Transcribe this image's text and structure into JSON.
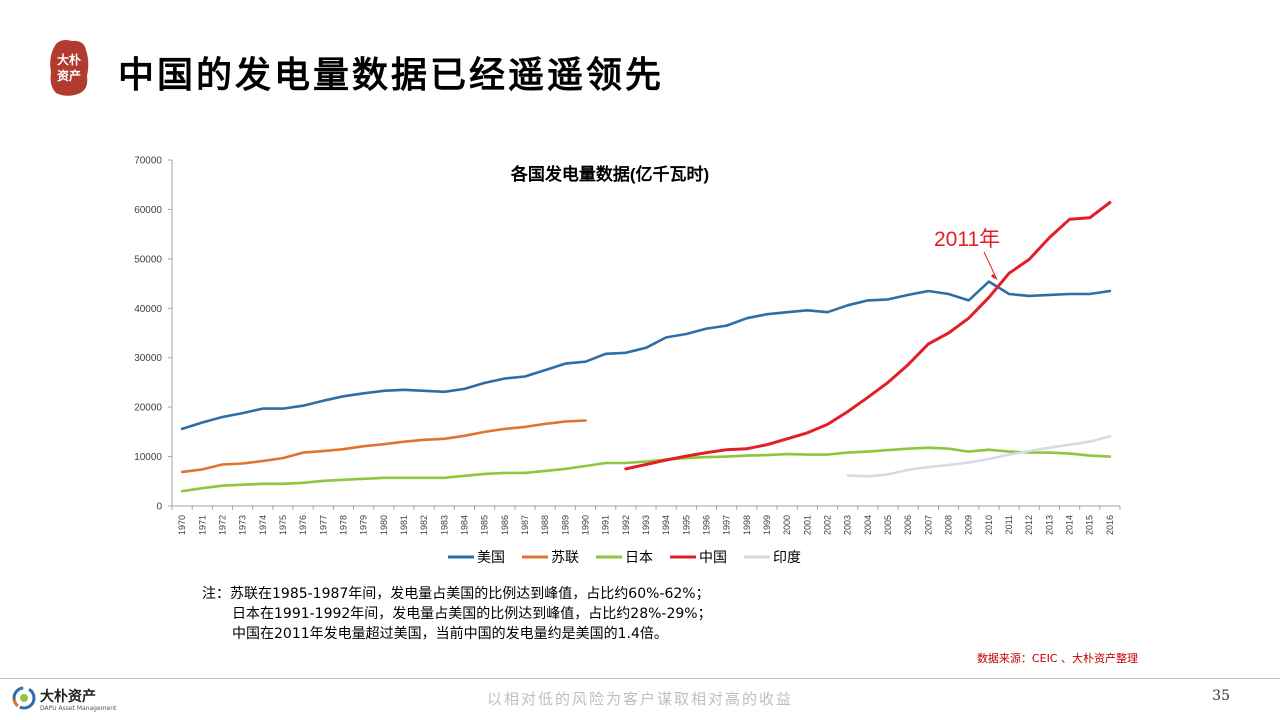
{
  "header": {
    "title": "中国的发电量数据已经遥遥领先",
    "seal_text": "大朴资产"
  },
  "chart_data": {
    "type": "line",
    "title": "各国发电量数据(亿千瓦时)",
    "x": [
      1970,
      1971,
      1972,
      1973,
      1974,
      1975,
      1976,
      1977,
      1978,
      1979,
      1980,
      1981,
      1982,
      1983,
      1984,
      1985,
      1986,
      1987,
      1988,
      1989,
      1990,
      1991,
      1992,
      1993,
      1994,
      1995,
      1996,
      1997,
      1998,
      1999,
      2000,
      2001,
      2002,
      2003,
      2004,
      2005,
      2006,
      2007,
      2008,
      2009,
      2010,
      2011,
      2012,
      2013,
      2014,
      2015,
      2016
    ],
    "ylim": [
      0,
      70000
    ],
    "yticks": [
      0,
      10000,
      20000,
      30000,
      40000,
      50000,
      60000,
      70000
    ],
    "legend_position": "bottom",
    "grid": false,
    "series": [
      {
        "name": "美国",
        "color": "#2e6ea7",
        "values": [
          15600,
          16900,
          18000,
          18800,
          19700,
          19700,
          20300,
          21300,
          22200,
          22800,
          23300,
          23500,
          23300,
          23100,
          23700,
          24900,
          25800,
          26200,
          27500,
          28800,
          29200,
          30800,
          31000,
          32000,
          34100,
          34800,
          35900,
          36500,
          38000,
          38800,
          39200,
          39600,
          39200,
          40600,
          41600,
          41800,
          42700,
          43500,
          42900,
          41600,
          45400,
          42900,
          42500,
          42700,
          42900,
          42900,
          43500
        ]
      },
      {
        "name": "苏联",
        "color": "#e0742c",
        "values": [
          6900,
          7400,
          8400,
          8600,
          9100,
          9700,
          10800,
          11100,
          11500,
          12100,
          12500,
          13000,
          13400,
          13600,
          14200,
          15000,
          15600,
          16000,
          16600,
          17100,
          17300,
          null,
          null,
          null,
          null,
          null,
          null,
          null,
          null,
          null,
          null,
          null,
          null,
          null,
          null,
          null,
          null,
          null,
          null,
          null,
          null,
          null,
          null,
          null,
          null,
          null,
          null
        ]
      },
      {
        "name": "日本",
        "color": "#8dc63f",
        "values": [
          3000,
          3600,
          4100,
          4300,
          4500,
          4500,
          4700,
          5100,
          5300,
          5500,
          5700,
          5700,
          5700,
          5700,
          6100,
          6500,
          6700,
          6700,
          7100,
          7500,
          8100,
          8700,
          8700,
          9000,
          9400,
          9700,
          9900,
          10000,
          10200,
          10300,
          10500,
          10400,
          10400,
          10800,
          11000,
          11300,
          11600,
          11800,
          11600,
          11000,
          11400,
          11000,
          10800,
          10800,
          10600,
          10200,
          10000
        ]
      },
      {
        "name": "中国",
        "color": "#e31e24",
        "values": [
          null,
          null,
          null,
          null,
          null,
          null,
          null,
          null,
          null,
          null,
          null,
          null,
          null,
          null,
          null,
          null,
          null,
          null,
          null,
          null,
          null,
          null,
          7500,
          8400,
          9300,
          10100,
          10800,
          11400,
          11600,
          12400,
          13600,
          14800,
          16500,
          19100,
          22000,
          25000,
          28600,
          32800,
          35000,
          38000,
          42200,
          47100,
          49900,
          54300,
          58000,
          58300,
          61400
        ]
      },
      {
        "name": "印度",
        "color": "#d9d9e6",
        "values": [
          null,
          null,
          null,
          null,
          null,
          null,
          null,
          null,
          null,
          null,
          null,
          null,
          null,
          null,
          null,
          null,
          null,
          null,
          null,
          null,
          null,
          null,
          null,
          null,
          null,
          null,
          null,
          null,
          null,
          null,
          null,
          null,
          null,
          6200,
          6000,
          6400,
          7300,
          7900,
          8300,
          8800,
          9500,
          10400,
          11100,
          11800,
          12400,
          13000,
          14100
        ]
      }
    ],
    "annotation": {
      "text": "2011年",
      "x": 2011,
      "y": 45400
    }
  },
  "footnote": {
    "lines": [
      "注：苏联在1985-1987年间，发电量占美国的比例达到峰值，占比约60%-62%；",
      "日本在1991-1992年间，发电量占美国的比例达到峰值，占比约28%-29%；",
      "中国在2011年发电量超过美国，当前中国的发电量约是美国的1.4倍。"
    ]
  },
  "source": "数据来源：CEIC 、大朴资产整理",
  "footer": {
    "brand": "大朴资产",
    "brand_en": "DAPU Asset Management",
    "slogan": "以相对低的风险为客户谋取相对高的收益",
    "page_number": "35"
  }
}
